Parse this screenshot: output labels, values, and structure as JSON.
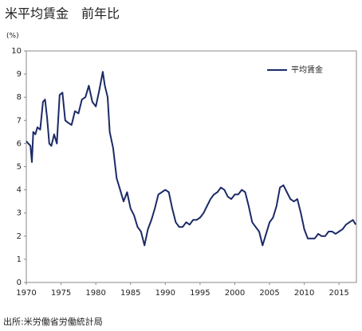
{
  "chart_data": {
    "type": "line",
    "title": "米平均賃金　前年比",
    "y_label": "(%)",
    "source": "出所:米労働省労働統計局",
    "x": [
      1970.0,
      1970.3,
      1970.6,
      1970.8,
      1971.0,
      1971.3,
      1971.6,
      1972.0,
      1972.4,
      1972.7,
      1973.0,
      1973.3,
      1973.6,
      1974.0,
      1974.4,
      1974.8,
      1975.2,
      1975.6,
      1976.0,
      1976.5,
      1977.0,
      1977.5,
      1978.0,
      1978.5,
      1979.0,
      1979.5,
      1980.0,
      1980.5,
      1981.0,
      1981.3,
      1981.7,
      1982.0,
      1982.5,
      1983.0,
      1983.5,
      1984.0,
      1984.5,
      1985.0,
      1985.5,
      1986.0,
      1986.5,
      1987.0,
      1987.5,
      1988.0,
      1988.5,
      1989.0,
      1989.5,
      1990.0,
      1990.5,
      1991.0,
      1991.5,
      1992.0,
      1992.5,
      1993.0,
      1993.5,
      1994.0,
      1994.5,
      1995.0,
      1995.5,
      1996.0,
      1996.5,
      1997.0,
      1997.5,
      1998.0,
      1998.5,
      1999.0,
      1999.5,
      2000.0,
      2000.5,
      2001.0,
      2001.5,
      2002.0,
      2002.5,
      2003.0,
      2003.5,
      2004.0,
      2004.5,
      2005.0,
      2005.5,
      2006.0,
      2006.5,
      2007.0,
      2007.5,
      2008.0,
      2008.5,
      2009.0,
      2009.5,
      2010.0,
      2010.5,
      2011.0,
      2011.5,
      2012.0,
      2012.5,
      2013.0,
      2013.5,
      2014.0,
      2014.5,
      2015.0,
      2015.5,
      2016.0,
      2016.5,
      2017.0,
      2017.4
    ],
    "series": [
      {
        "name": "平均賃金",
        "color": "#1b2a66",
        "values": [
          6.1,
          6.0,
          5.9,
          5.2,
          6.5,
          6.4,
          6.7,
          6.6,
          7.8,
          7.9,
          7.1,
          6.0,
          5.9,
          6.4,
          6.0,
          8.1,
          8.2,
          7.0,
          6.9,
          6.8,
          7.4,
          7.3,
          7.9,
          8.0,
          8.5,
          7.8,
          7.6,
          8.3,
          9.1,
          8.5,
          8.0,
          6.5,
          5.8,
          4.5,
          4.0,
          3.5,
          3.9,
          3.2,
          2.9,
          2.4,
          2.2,
          1.6,
          2.3,
          2.7,
          3.2,
          3.8,
          3.9,
          4.0,
          3.9,
          3.2,
          2.6,
          2.4,
          2.4,
          2.6,
          2.5,
          2.7,
          2.7,
          2.8,
          3.0,
          3.3,
          3.6,
          3.8,
          3.9,
          4.1,
          4.0,
          3.7,
          3.6,
          3.8,
          3.8,
          4.0,
          3.9,
          3.3,
          2.6,
          2.4,
          2.2,
          1.6,
          2.1,
          2.6,
          2.8,
          3.3,
          4.1,
          4.2,
          3.9,
          3.6,
          3.5,
          3.6,
          3.0,
          2.3,
          1.9,
          1.9,
          1.9,
          2.1,
          2.0,
          2.0,
          2.2,
          2.2,
          2.1,
          2.2,
          2.3,
          2.5,
          2.6,
          2.7,
          2.5
        ]
      }
    ],
    "xlim": [
      1970,
      2017.5
    ],
    "xticks": [
      1970,
      1975,
      1980,
      1985,
      1990,
      1995,
      2000,
      2005,
      2010,
      2015
    ],
    "ylim": [
      0,
      10
    ],
    "yticks": [
      0,
      1,
      2,
      3,
      4,
      5,
      6,
      7,
      8,
      9,
      10
    ],
    "grid": false,
    "legend": "upper right"
  }
}
